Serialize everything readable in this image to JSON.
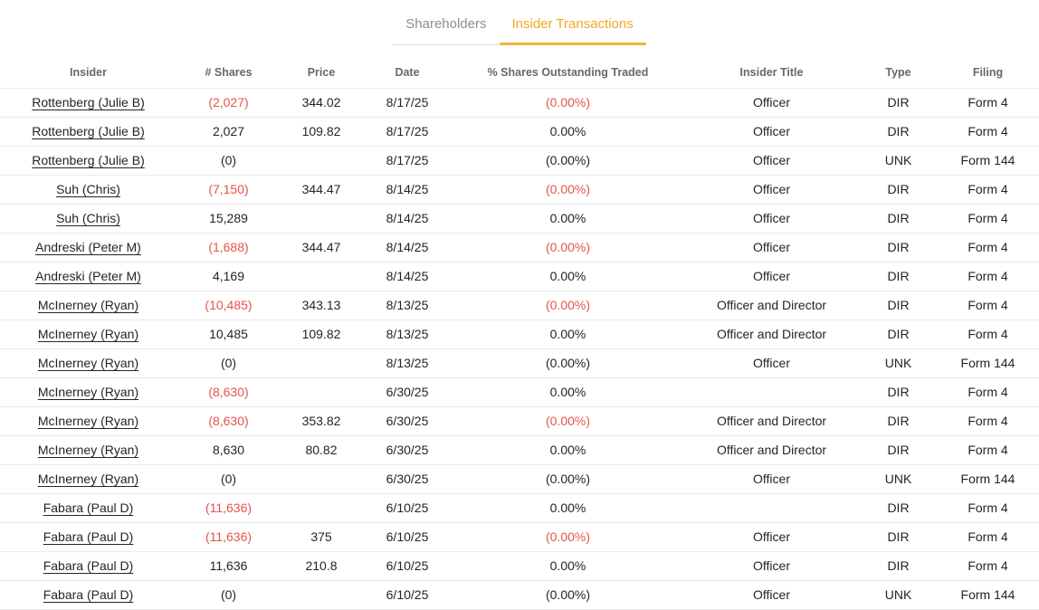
{
  "tabs": [
    {
      "label": "Shareholders",
      "active": false
    },
    {
      "label": "Insider Transactions",
      "active": true
    }
  ],
  "colors": {
    "active_tab": "#f6a623",
    "active_tab_underline": "#ecb53c",
    "inactive_tab": "#8e8e8e",
    "negative_value": "#e5534b",
    "header_text": "#65686c",
    "body_text": "#222426",
    "row_divider": "#e9e9e9"
  },
  "table": {
    "columns": [
      "Insider",
      "# Shares",
      "Price",
      "Date",
      "% Shares Outstanding Traded",
      "Insider Title",
      "Type",
      "Filing"
    ],
    "rows": [
      {
        "insider": "Rottenberg (Julie B)",
        "shares": "(2,027)",
        "shares_red": true,
        "price": "344.02",
        "date": "8/17/25",
        "pct": "(0.00%)",
        "pct_red": true,
        "title": "Officer",
        "type": "DIR",
        "filing": "Form 4"
      },
      {
        "insider": "Rottenberg (Julie B)",
        "shares": "2,027",
        "shares_red": false,
        "price": "109.82",
        "date": "8/17/25",
        "pct": "0.00%",
        "pct_red": false,
        "title": "Officer",
        "type": "DIR",
        "filing": "Form 4"
      },
      {
        "insider": "Rottenberg (Julie B)",
        "shares": "(0)",
        "shares_red": false,
        "price": "",
        "date": "8/17/25",
        "pct": "(0.00%)",
        "pct_red": false,
        "title": "Officer",
        "type": "UNK",
        "filing": "Form 144"
      },
      {
        "insider": "Suh (Chris)",
        "shares": "(7,150)",
        "shares_red": true,
        "price": "344.47",
        "date": "8/14/25",
        "pct": "(0.00%)",
        "pct_red": true,
        "title": "Officer",
        "type": "DIR",
        "filing": "Form 4"
      },
      {
        "insider": "Suh (Chris)",
        "shares": "15,289",
        "shares_red": false,
        "price": "",
        "date": "8/14/25",
        "pct": "0.00%",
        "pct_red": false,
        "title": "Officer",
        "type": "DIR",
        "filing": "Form 4"
      },
      {
        "insider": "Andreski (Peter M)",
        "shares": "(1,688)",
        "shares_red": true,
        "price": "344.47",
        "date": "8/14/25",
        "pct": "(0.00%)",
        "pct_red": true,
        "title": "Officer",
        "type": "DIR",
        "filing": "Form 4"
      },
      {
        "insider": "Andreski (Peter M)",
        "shares": "4,169",
        "shares_red": false,
        "price": "",
        "date": "8/14/25",
        "pct": "0.00%",
        "pct_red": false,
        "title": "Officer",
        "type": "DIR",
        "filing": "Form 4"
      },
      {
        "insider": "McInerney (Ryan)",
        "shares": "(10,485)",
        "shares_red": true,
        "price": "343.13",
        "date": "8/13/25",
        "pct": "(0.00%)",
        "pct_red": true,
        "title": "Officer and Director",
        "type": "DIR",
        "filing": "Form 4"
      },
      {
        "insider": "McInerney (Ryan)",
        "shares": "10,485",
        "shares_red": false,
        "price": "109.82",
        "date": "8/13/25",
        "pct": "0.00%",
        "pct_red": false,
        "title": "Officer and Director",
        "type": "DIR",
        "filing": "Form 4"
      },
      {
        "insider": "McInerney (Ryan)",
        "shares": "(0)",
        "shares_red": false,
        "price": "",
        "date": "8/13/25",
        "pct": "(0.00%)",
        "pct_red": false,
        "title": "Officer",
        "type": "UNK",
        "filing": "Form 144"
      },
      {
        "insider": "McInerney (Ryan)",
        "shares": "(8,630)",
        "shares_red": true,
        "price": "",
        "date": "6/30/25",
        "pct": "0.00%",
        "pct_red": false,
        "title": "",
        "type": "DIR",
        "filing": "Form 4"
      },
      {
        "insider": "McInerney (Ryan)",
        "shares": "(8,630)",
        "shares_red": true,
        "price": "353.82",
        "date": "6/30/25",
        "pct": "(0.00%)",
        "pct_red": true,
        "title": "Officer and Director",
        "type": "DIR",
        "filing": "Form 4"
      },
      {
        "insider": "McInerney (Ryan)",
        "shares": "8,630",
        "shares_red": false,
        "price": "80.82",
        "date": "6/30/25",
        "pct": "0.00%",
        "pct_red": false,
        "title": "Officer and Director",
        "type": "DIR",
        "filing": "Form 4"
      },
      {
        "insider": "McInerney (Ryan)",
        "shares": "(0)",
        "shares_red": false,
        "price": "",
        "date": "6/30/25",
        "pct": "(0.00%)",
        "pct_red": false,
        "title": "Officer",
        "type": "UNK",
        "filing": "Form 144"
      },
      {
        "insider": "Fabara (Paul D)",
        "shares": "(11,636)",
        "shares_red": true,
        "price": "",
        "date": "6/10/25",
        "pct": "0.00%",
        "pct_red": false,
        "title": "",
        "type": "DIR",
        "filing": "Form 4"
      },
      {
        "insider": "Fabara (Paul D)",
        "shares": "(11,636)",
        "shares_red": true,
        "price": "375",
        "date": "6/10/25",
        "pct": "(0.00%)",
        "pct_red": true,
        "title": "Officer",
        "type": "DIR",
        "filing": "Form 4"
      },
      {
        "insider": "Fabara (Paul D)",
        "shares": "11,636",
        "shares_red": false,
        "price": "210.8",
        "date": "6/10/25",
        "pct": "0.00%",
        "pct_red": false,
        "title": "Officer",
        "type": "DIR",
        "filing": "Form 4"
      },
      {
        "insider": "Fabara (Paul D)",
        "shares": "(0)",
        "shares_red": false,
        "price": "",
        "date": "6/10/25",
        "pct": "(0.00%)",
        "pct_red": false,
        "title": "Officer",
        "type": "UNK",
        "filing": "Form 144"
      }
    ]
  }
}
